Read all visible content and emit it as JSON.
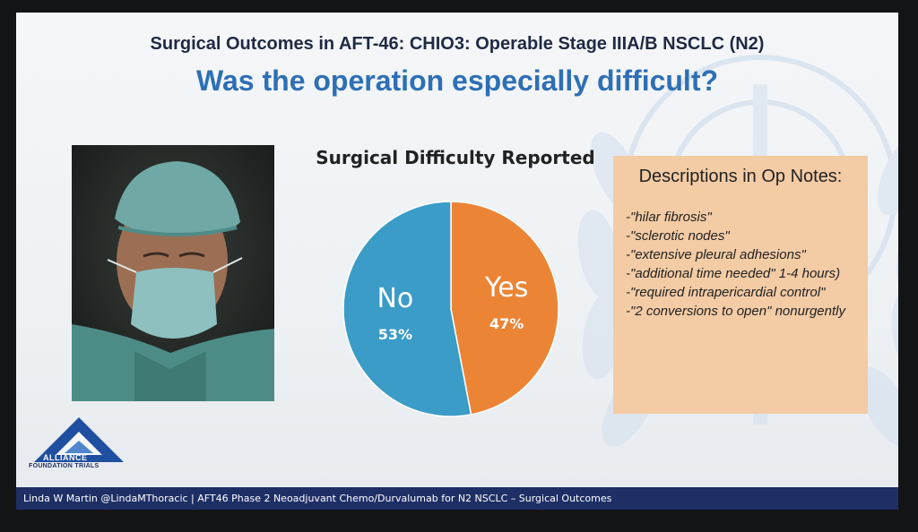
{
  "slide": {
    "subtitle": "Surgical Outcomes in AFT-46: CHIO3: Operable Stage IIIA/B NSCLC (N2)",
    "title": "Was the operation especially difficult?",
    "footer": "Linda W Martin @LindaMThoracic | AFT46 Phase 2 Neoadjuvant Chemo/Durvalumab for N2 NSCLC – Surgical Outcomes"
  },
  "logo": {
    "line1": "ALLIANCE",
    "line2": "FOUNDATION TRIALS",
    "color": "#1f4fa0"
  },
  "notes": {
    "heading": "Descriptions in Op Notes:",
    "items": [
      "-\"hilar fibrosis\"",
      "-\"sclerotic nodes\"",
      "-\"extensive pleural adhesions\"",
      "-\"additional time needed\" 1-4 hours)",
      "-\"required intrapericardial control\"",
      "-\"2 conversions to open\" nonurgently"
    ]
  },
  "chart_data": {
    "type": "pie",
    "title": "Surgical Difficulty Reported",
    "slices": [
      {
        "label": "No",
        "value": 53,
        "display": "53%",
        "color": "#3a9cc7"
      },
      {
        "label": "Yes",
        "value": 47,
        "display": "47%",
        "color": "#ec8436"
      }
    ]
  }
}
